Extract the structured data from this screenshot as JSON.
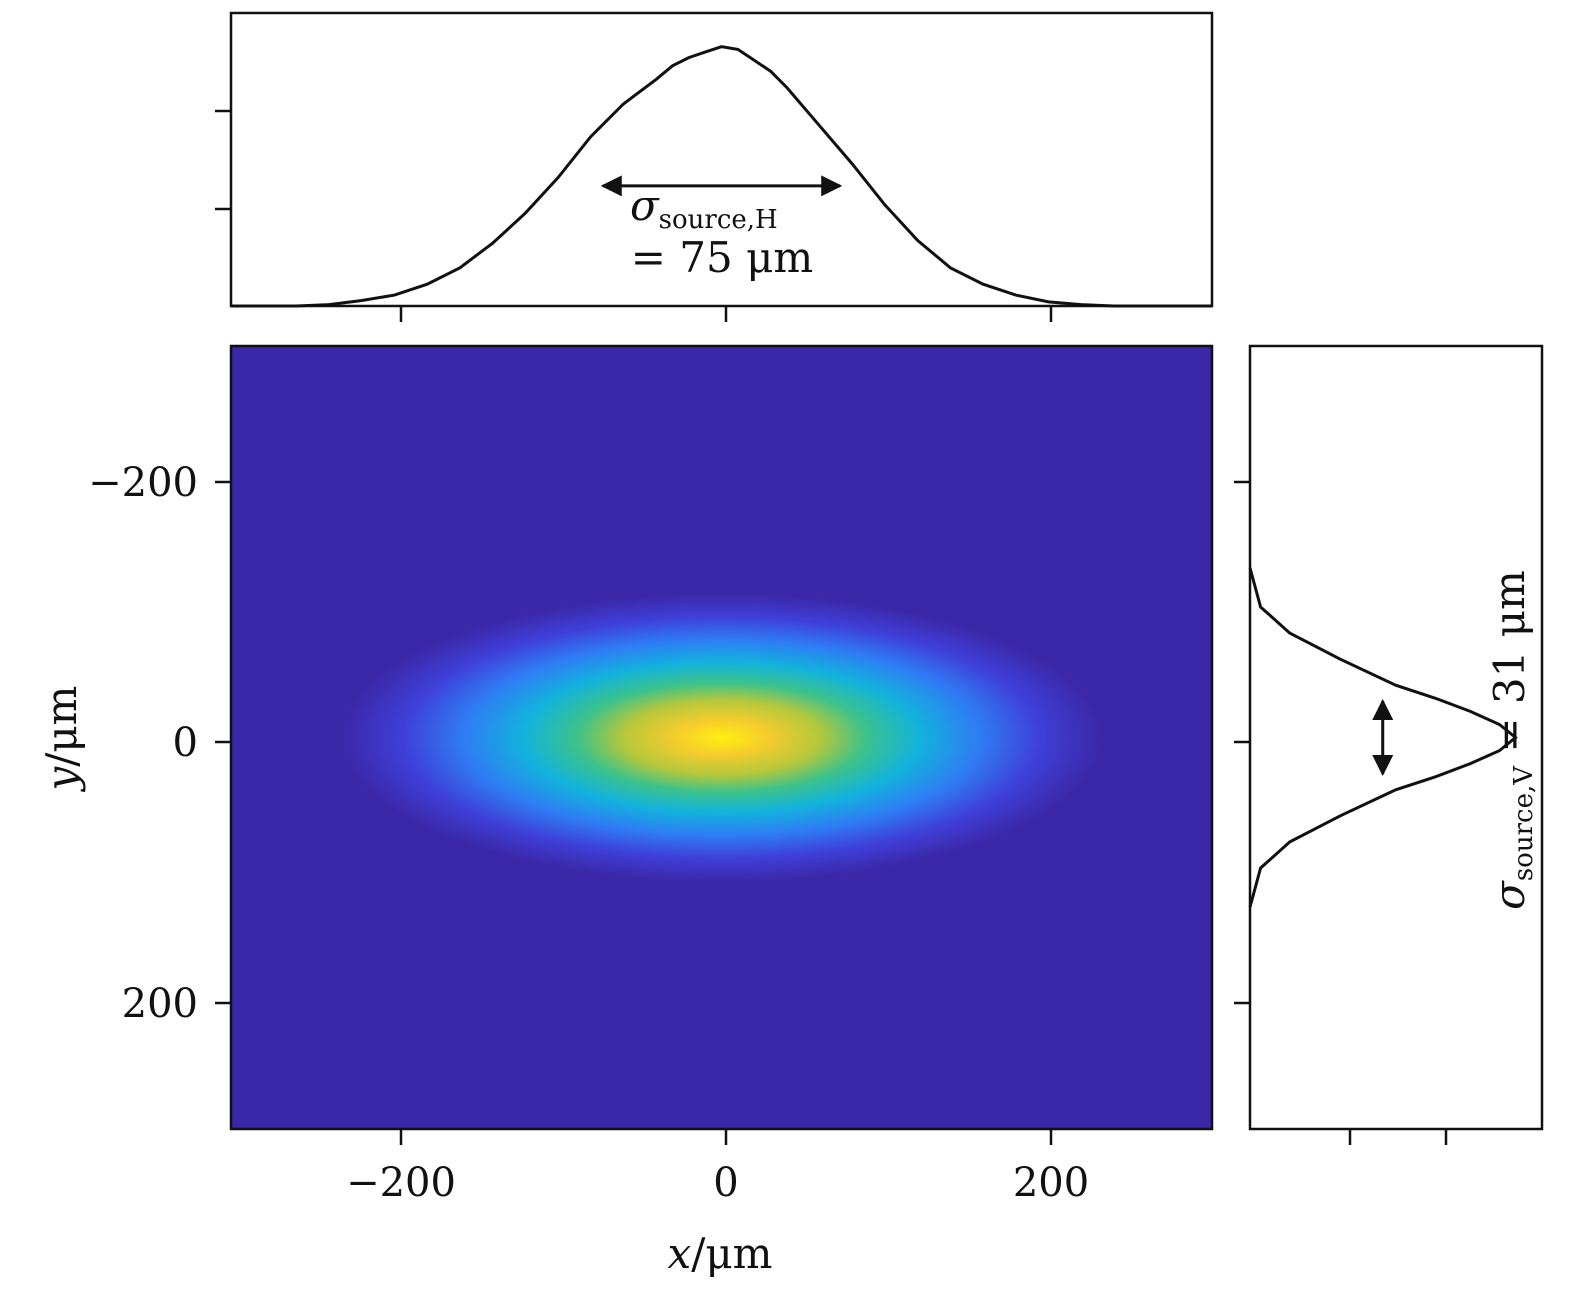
{
  "chart_data": [
    {
      "panel": "main-heatmap",
      "type": "heatmap",
      "xlabel_var": "x",
      "xlabel_unit": "/μm",
      "ylabel_var": "y",
      "ylabel_unit": "/μm",
      "xlim": [
        -300,
        300
      ],
      "ylim": [
        300,
        -300
      ],
      "y_inverted": true,
      "x_ticks": [
        -200,
        0,
        200
      ],
      "x_tick_labels": [
        "−200",
        "0",
        "200"
      ],
      "y_ticks": [
        -200,
        0,
        200
      ],
      "y_tick_labels": [
        "−200",
        "0",
        "200"
      ],
      "beam": {
        "center_x": 0,
        "center_y": 0,
        "sigma_x": 75,
        "sigma_y": 31
      },
      "colormap": [
        "#3b28a8",
        "#3f3fd8",
        "#2f7cf5",
        "#12b3dc",
        "#3cc28a",
        "#b4c73c",
        "#f6cc2c",
        "#ffee10"
      ],
      "background_color": "#3b28a8"
    },
    {
      "panel": "top-horizontal-profile",
      "type": "line",
      "xlim": [
        -300,
        300
      ],
      "x": [
        -300,
        -260,
        -240,
        -220,
        -200,
        -180,
        -160,
        -140,
        -120,
        -100,
        -80,
        -60,
        -40,
        -30,
        -20,
        -10,
        0,
        10,
        20,
        30,
        40,
        60,
        80,
        100,
        120,
        140,
        160,
        180,
        200,
        220,
        240,
        260,
        300
      ],
      "y": [
        0.0,
        0.0,
        0.005,
        0.02,
        0.04,
        0.08,
        0.14,
        0.23,
        0.34,
        0.47,
        0.62,
        0.74,
        0.83,
        0.88,
        0.91,
        0.93,
        0.95,
        0.94,
        0.9,
        0.86,
        0.8,
        0.66,
        0.52,
        0.37,
        0.24,
        0.14,
        0.08,
        0.04,
        0.015,
        0.005,
        0.0,
        0.0,
        0.0
      ],
      "ylim": [
        0,
        1
      ],
      "annotation": {
        "symbol": "σ",
        "subscript": "source,H",
        "value_text": "= 75 μm",
        "arrow_from_x": -75,
        "arrow_to_x": 75,
        "arrow_level": 0.44
      }
    },
    {
      "panel": "right-vertical-profile",
      "type": "line",
      "ylim": [
        300,
        -300
      ],
      "y_ticks": [
        -200,
        0,
        200
      ],
      "y": [
        -130,
        -100,
        -80,
        -60,
        -40,
        -30,
        -20,
        -10,
        0,
        10,
        20,
        30,
        40,
        60,
        80,
        100,
        130
      ],
      "x": [
        0.0,
        0.04,
        0.15,
        0.34,
        0.55,
        0.7,
        0.83,
        0.94,
        1.0,
        0.94,
        0.83,
        0.7,
        0.55,
        0.34,
        0.15,
        0.04,
        0.0
      ],
      "xlim": [
        0,
        1.1
      ],
      "annotation": {
        "symbol": "σ",
        "subscript": "source,V",
        "value_text": " = 31 μm",
        "arrow_from_y": -31,
        "arrow_to_y": 31,
        "arrow_level": 0.5
      }
    }
  ]
}
